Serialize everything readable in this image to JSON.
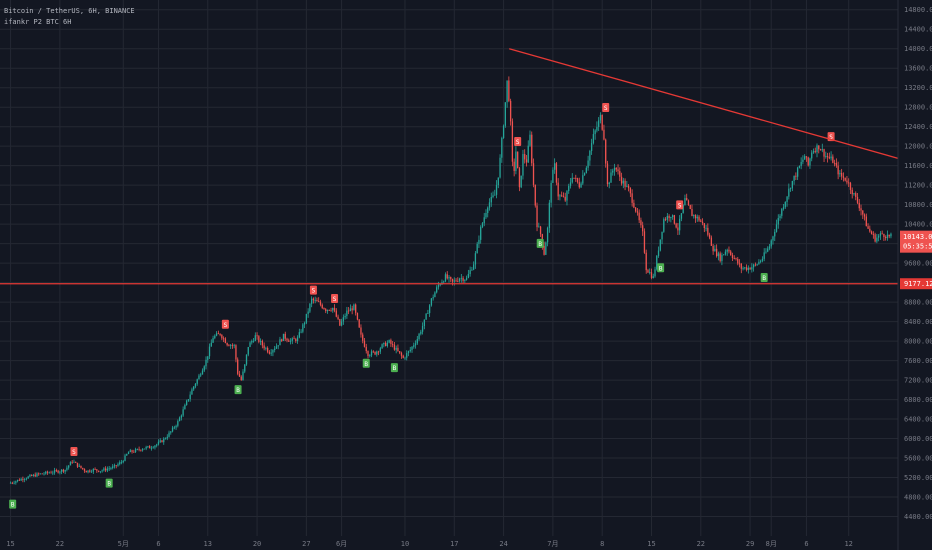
{
  "header": {
    "title": "Bitcoin / TetherUS, 6H, BINANCE",
    "study": "ifankr P2 BTC 6H"
  },
  "colors": {
    "background": "#131722",
    "grid": "#242833",
    "up": "#26a69a",
    "down": "#ef5350",
    "trendline": "#e53935",
    "axis_text": "#787b86",
    "buy_marker": "#4caf50",
    "sell_marker": "#ef5350"
  },
  "price_labels": {
    "last_price": "10143.00",
    "countdown": "05:35:57",
    "support_level": "9177.12"
  },
  "chart_data": {
    "type": "candlestick",
    "symbol": "Bitcoin / TetherUS",
    "interval": "6H",
    "exchange": "BINANCE",
    "y_ticks": [
      4400,
      4800,
      5200,
      5600,
      6000,
      6400,
      6800,
      7200,
      7600,
      8000,
      8400,
      8800,
      9200,
      9600,
      10000,
      10400,
      10800,
      11200,
      11600,
      12000,
      12400,
      12800,
      13200,
      13600,
      14000,
      14400,
      14800
    ],
    "y_tick_labels": [
      "4400.00",
      "4800.00",
      "5200.00",
      "5600.00",
      "6000.00",
      "6400.00",
      "6800.00",
      "7200.00",
      "7600.00",
      "8000.00",
      "8400.00",
      "8800.00",
      "9200.00",
      "9600.00",
      "10000.00",
      "10400.00",
      "10800.00",
      "11200.00",
      "11600.00",
      "12000.00",
      "12400.00",
      "12800.00",
      "13200.00",
      "13600.00",
      "14000.00",
      "14400.00",
      "14800.00"
    ],
    "ylim": [
      4000,
      15000
    ],
    "x_ticks": [
      {
        "label": "15",
        "day": 0
      },
      {
        "label": "22",
        "day": 7
      },
      {
        "label": "5月",
        "day": 16
      },
      {
        "label": "6",
        "day": 21
      },
      {
        "label": "13",
        "day": 28
      },
      {
        "label": "20",
        "day": 35
      },
      {
        "label": "27",
        "day": 42
      },
      {
        "label": "6月",
        "day": 47
      },
      {
        "label": "10",
        "day": 56
      },
      {
        "label": "17",
        "day": 63
      },
      {
        "label": "24",
        "day": 70
      },
      {
        "label": "7月",
        "day": 77
      },
      {
        "label": "8",
        "day": 84
      },
      {
        "label": "15",
        "day": 91
      },
      {
        "label": "22",
        "day": 98
      },
      {
        "label": "29",
        "day": 105
      },
      {
        "label": "8月",
        "day": 108
      },
      {
        "label": "6",
        "day": 113
      },
      {
        "label": "12",
        "day": 119
      }
    ],
    "xlim_days": [
      -1.5,
      126
    ],
    "price_path": [
      [
        0,
        5080
      ],
      [
        2,
        5180
      ],
      [
        4,
        5260
      ],
      [
        6,
        5310
      ],
      [
        7,
        5330
      ],
      [
        8,
        5360
      ],
      [
        9,
        5540
      ],
      [
        10,
        5420
      ],
      [
        11,
        5330
      ],
      [
        12,
        5360
      ],
      [
        13,
        5340
      ],
      [
        14,
        5380
      ],
      [
        15,
        5420
      ],
      [
        16,
        5520
      ],
      [
        17,
        5720
      ],
      [
        18,
        5750
      ],
      [
        19,
        5800
      ],
      [
        20,
        5820
      ],
      [
        21,
        5880
      ],
      [
        22,
        5980
      ],
      [
        23,
        6140
      ],
      [
        24,
        6340
      ],
      [
        25,
        6660
      ],
      [
        26,
        7000
      ],
      [
        27,
        7280
      ],
      [
        28,
        7600
      ],
      [
        29,
        8080
      ],
      [
        30,
        8150
      ],
      [
        31,
        7950
      ],
      [
        32,
        7900
      ],
      [
        32.5,
        7350
      ],
      [
        33,
        7200
      ],
      [
        33.5,
        7500
      ],
      [
        34,
        7900
      ],
      [
        35,
        8100
      ],
      [
        36,
        7920
      ],
      [
        37,
        7780
      ],
      [
        38,
        7900
      ],
      [
        39,
        8100
      ],
      [
        40,
        8000
      ],
      [
        41,
        8050
      ],
      [
        42,
        8400
      ],
      [
        43,
        8850
      ],
      [
        44,
        8780
      ],
      [
        45,
        8650
      ],
      [
        46,
        8680
      ],
      [
        47,
        8320
      ],
      [
        48,
        8600
      ],
      [
        49,
        8700
      ],
      [
        50,
        8100
      ],
      [
        51,
        7740
      ],
      [
        52,
        7760
      ],
      [
        53,
        7900
      ],
      [
        54,
        7980
      ],
      [
        55,
        7820
      ],
      [
        56,
        7650
      ],
      [
        57,
        7820
      ],
      [
        58,
        8050
      ],
      [
        59,
        8400
      ],
      [
        60,
        8850
      ],
      [
        61,
        9150
      ],
      [
        62,
        9320
      ],
      [
        63,
        9200
      ],
      [
        64,
        9300
      ],
      [
        65,
        9280
      ],
      [
        66,
        9600
      ],
      [
        67,
        10300
      ],
      [
        68,
        10800
      ],
      [
        69,
        11000
      ],
      [
        69.6,
        11500
      ],
      [
        70.2,
        12400
      ],
      [
        70.8,
        13400
      ],
      [
        71.2,
        12600
      ],
      [
        71.6,
        11300
      ],
      [
        72,
        11900
      ],
      [
        72.5,
        11100
      ],
      [
        73,
        11800
      ],
      [
        73.5,
        11700
      ],
      [
        74,
        12200
      ],
      [
        74.5,
        11200
      ],
      [
        75,
        10400
      ],
      [
        75.5,
        10200
      ],
      [
        76,
        9800
      ],
      [
        76.5,
        10300
      ],
      [
        77,
        11300
      ],
      [
        77.5,
        11600
      ],
      [
        78,
        11000
      ],
      [
        79,
        10900
      ],
      [
        80,
        11400
      ],
      [
        81,
        11200
      ],
      [
        82,
        11600
      ],
      [
        83,
        12200
      ],
      [
        84,
        12600
      ],
      [
        84.5,
        12200
      ],
      [
        85,
        11200
      ],
      [
        86,
        11600
      ],
      [
        87,
        11300
      ],
      [
        88,
        11100
      ],
      [
        89,
        10700
      ],
      [
        90,
        10200
      ],
      [
        90.5,
        9500
      ],
      [
        91,
        9400
      ],
      [
        91.5,
        9300
      ],
      [
        92,
        9700
      ],
      [
        93,
        10500
      ],
      [
        94,
        10600
      ],
      [
        95,
        10300
      ],
      [
        96,
        10900
      ],
      [
        97,
        10600
      ],
      [
        98,
        10500
      ],
      [
        99,
        10300
      ],
      [
        100,
        9900
      ],
      [
        101,
        9700
      ],
      [
        102,
        9900
      ],
      [
        103,
        9700
      ],
      [
        104,
        9500
      ],
      [
        105,
        9500
      ],
      [
        106,
        9550
      ],
      [
        107,
        9700
      ],
      [
        108,
        9950
      ],
      [
        109,
        10400
      ],
      [
        110,
        10800
      ],
      [
        111,
        11200
      ],
      [
        112,
        11500
      ],
      [
        113,
        11800
      ],
      [
        113.5,
        11600
      ],
      [
        114,
        11900
      ],
      [
        115,
        12000
      ],
      [
        116,
        11800
      ],
      [
        117,
        11700
      ],
      [
        118,
        11400
      ],
      [
        119,
        11300
      ],
      [
        120,
        11000
      ],
      [
        121,
        10700
      ],
      [
        122,
        10300
      ],
      [
        123,
        10100
      ],
      [
        124,
        10200
      ],
      [
        125,
        10143
      ]
    ],
    "annotations": {
      "trendline": {
        "from": {
          "day": 70.8,
          "price": 14000
        },
        "to": {
          "day": 126,
          "price": 11750
        }
      },
      "support_line": {
        "price": 9177.12
      },
      "sell_markers": [
        {
          "day": 9,
          "price": 5540
        },
        {
          "day": 30.5,
          "price": 8150
        },
        {
          "day": 43,
          "price": 8850
        },
        {
          "day": 46,
          "price": 8680
        },
        {
          "day": 72,
          "price": 11900
        },
        {
          "day": 84.5,
          "price": 12600
        },
        {
          "day": 95,
          "price": 10600
        },
        {
          "day": 116.5,
          "price": 12000
        }
      ],
      "buy_markers": [
        {
          "day": 0.3,
          "price": 4850
        },
        {
          "day": 14,
          "price": 5280
        },
        {
          "day": 32.3,
          "price": 7200
        },
        {
          "day": 50.5,
          "price": 7740
        },
        {
          "day": 54.5,
          "price": 7650
        },
        {
          "day": 75.2,
          "price": 10200
        },
        {
          "day": 92.3,
          "price": 9700
        },
        {
          "day": 107,
          "price": 9500
        }
      ]
    }
  }
}
